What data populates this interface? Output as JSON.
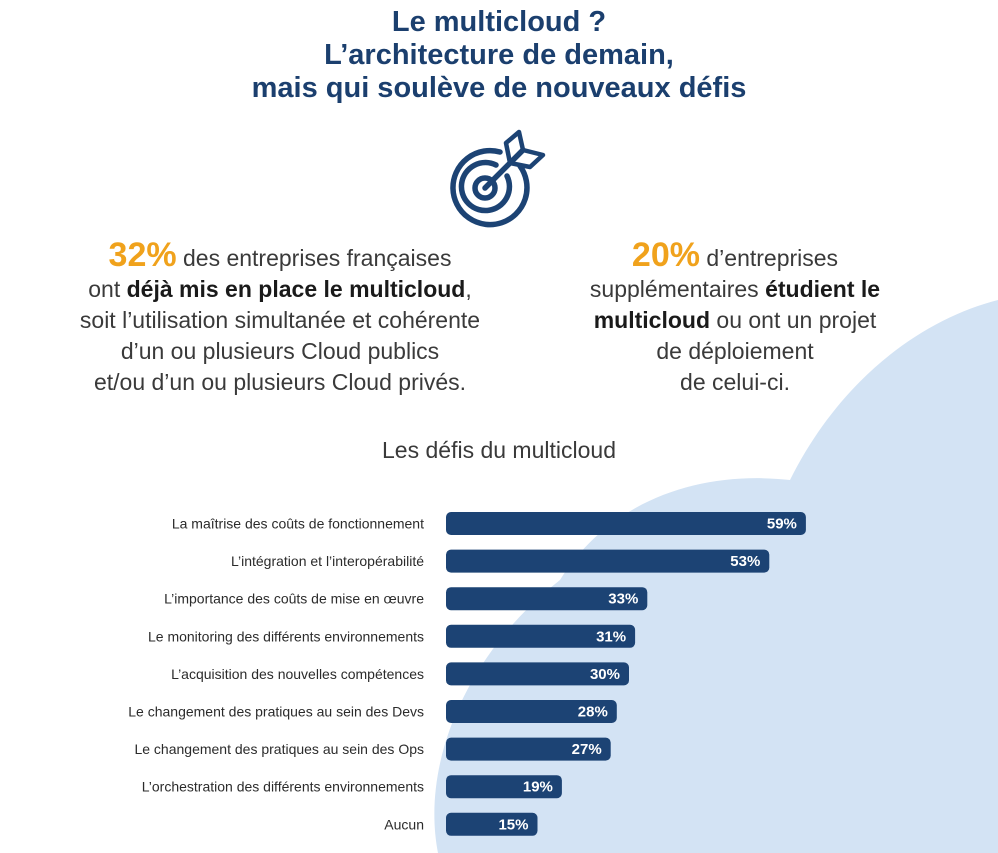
{
  "title": {
    "line1": "Le multicloud ?",
    "line2": "L’architecture de demain,",
    "line3": "mais qui soulève de nouveaux défis"
  },
  "stat_left": {
    "percent": "32%",
    "text1": " des entreprises françaises",
    "text2a": "ont ",
    "text2b": "déjà mis en place le multicloud",
    "text2c": ",",
    "text3": "soit l’utilisation simultanée et cohérente",
    "text4": "d’un ou plusieurs Cloud publics",
    "text5": "et/ou d’un ou plusieurs Cloud privés."
  },
  "stat_right": {
    "percent": "20%",
    "text1": " d’entreprises",
    "text2a": "supplémentaires ",
    "text2b": "étudient le",
    "text3a": "multicloud",
    "text3b": " ou ont un projet",
    "text4": "de déploiement",
    "text5": "de celui-ci."
  },
  "colors": {
    "accent": "#f0a21c",
    "title": "#1b3f6e",
    "bar": "#1c4374",
    "cloud": "#d3e3f4"
  },
  "icons": [
    "target-arrow-icon"
  ],
  "chart_data": {
    "type": "bar",
    "orientation": "horizontal",
    "title": "Les défis du multicloud",
    "categories": [
      "La maîtrise des coûts de fonctionnement",
      "L’intégration et l’interopérabilité",
      "L’importance des coûts de mise en œuvre",
      "Le monitoring des différents environnements",
      "L’acquisition des nouvelles compétences",
      "Le changement des pratiques au sein des Devs",
      "Le changement des pratiques au sein des Ops",
      "L’orchestration des différents environnements",
      "Aucun"
    ],
    "values": [
      59,
      53,
      33,
      31,
      30,
      28,
      27,
      19,
      15
    ],
    "value_labels": [
      "59%",
      "53%",
      "33%",
      "31%",
      "30%",
      "28%",
      "27%",
      "19%",
      "15%"
    ],
    "unit": "%",
    "grid": false
  }
}
